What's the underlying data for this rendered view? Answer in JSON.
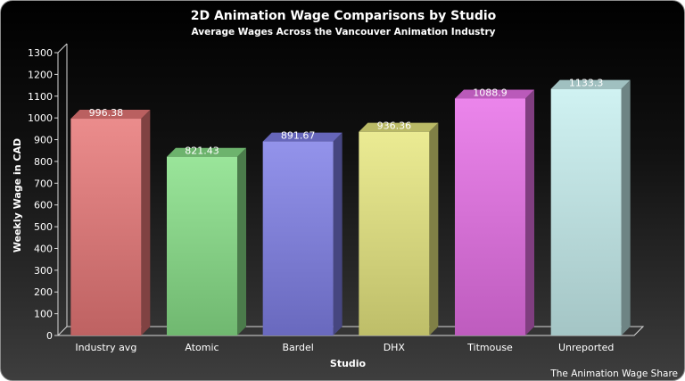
{
  "chart_data": {
    "type": "bar",
    "title": "2D Animation Wage Comparisons by Studio",
    "subtitle": "Average Wages Across the Vancouver Animation Industry",
    "xlabel": "Studio",
    "ylabel": "Weekly Wage in CAD",
    "categories": [
      "Industry avg",
      "Atomic",
      "Bardel",
      "DHX",
      "Titmouse",
      "Unreported"
    ],
    "values": [
      996.38,
      821.43,
      891.67,
      936.36,
      1088.9,
      1133.3
    ],
    "data_labels": [
      "996.38",
      "821.43",
      "891.67",
      "936.36",
      "1088.9",
      "1133.3"
    ],
    "colors": [
      "#e87878",
      "#88e088",
      "#8080e8",
      "#e8e880",
      "#e870e8",
      "#c8f0f0"
    ],
    "ylim": [
      0,
      1300
    ],
    "yticks": [
      "0",
      "100",
      "200",
      "300",
      "400",
      "500",
      "600",
      "700",
      "800",
      "900",
      "1000",
      "1100",
      "1200",
      "1300"
    ],
    "grid": false,
    "legend": "none",
    "style": "3d"
  },
  "source": "The Animation Wage Share"
}
